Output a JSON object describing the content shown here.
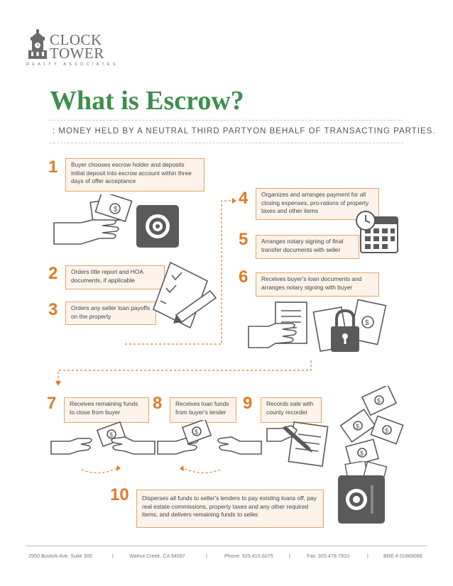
{
  "logo": {
    "line1": "CLOCK",
    "line2": "TOWER",
    "tagline": "REALTY ASSOCIATES"
  },
  "title": "What is Escrow?",
  "subtitle": ": MONEY HELD BY A NEUTRAL THIRD PARTYON BEHALF OF TRANSACTING PARTIES.",
  "steps": [
    {
      "number": "1",
      "text": "Buyer chooses escrow holder and deposits initial deposit into escrow account within three days of offer acceptance"
    },
    {
      "number": "2",
      "text": "Orders title report and HOA documents, if applicable"
    },
    {
      "number": "3",
      "text": "Orders any seller loan payoffs on the property"
    },
    {
      "number": "4",
      "text": "Organizes and arranges payment for all closing expenses, pro-rations of property taxes and other items"
    },
    {
      "number": "5",
      "text": "Arranges notary signing of final transfer documents with seller"
    },
    {
      "number": "6",
      "text": "Receives buyer's loan documents and arranges notary signing with buyer"
    },
    {
      "number": "7",
      "text": "Receives remaining funds to close from buyer"
    },
    {
      "number": "8",
      "text": "Receives loan funds from buyer's lender"
    },
    {
      "number": "9",
      "text": "Records sale with county recorder"
    },
    {
      "number": "10",
      "text": "Disperses all funds to seller's lenders to pay existing loans off, pay real estate commissions, property taxes and any other required items, and delivers remaining funds to seller."
    }
  ],
  "footer": {
    "address": "2950 Buskirk Ave. Suite 300",
    "city": "Walnut Creek, CA 94597",
    "phone": "Phone: 925.415.6075",
    "fax": "Fax: 925.478.7910",
    "bre": "BRE # 01869066",
    "separator": "|"
  },
  "colors": {
    "accent": "#e07b26",
    "title": "#3e8f4b",
    "icon": "#5a5a5a"
  }
}
